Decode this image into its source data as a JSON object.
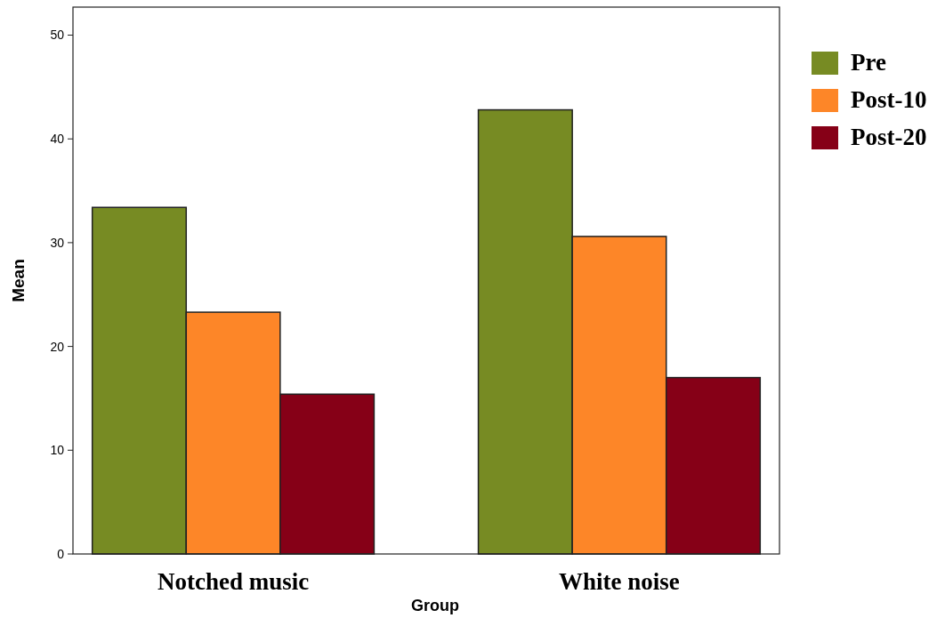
{
  "chart_data": {
    "type": "bar",
    "xlabel": "Group",
    "ylabel": "Mean",
    "categories": [
      "Notched music",
      "White noise"
    ],
    "series": [
      {
        "name": "Pre",
        "color": "#778b23",
        "values": [
          33.4,
          42.8
        ]
      },
      {
        "name": "Post-10",
        "color": "#fd8628",
        "values": [
          23.3,
          30.6
        ]
      },
      {
        "name": "Post-20",
        "color": "#860017",
        "values": [
          15.4,
          17.0
        ]
      }
    ],
    "ylim": [
      0,
      52.7
    ],
    "yticks": [
      0,
      10,
      20,
      30,
      40,
      50
    ],
    "grid": false,
    "legend": "top right"
  }
}
